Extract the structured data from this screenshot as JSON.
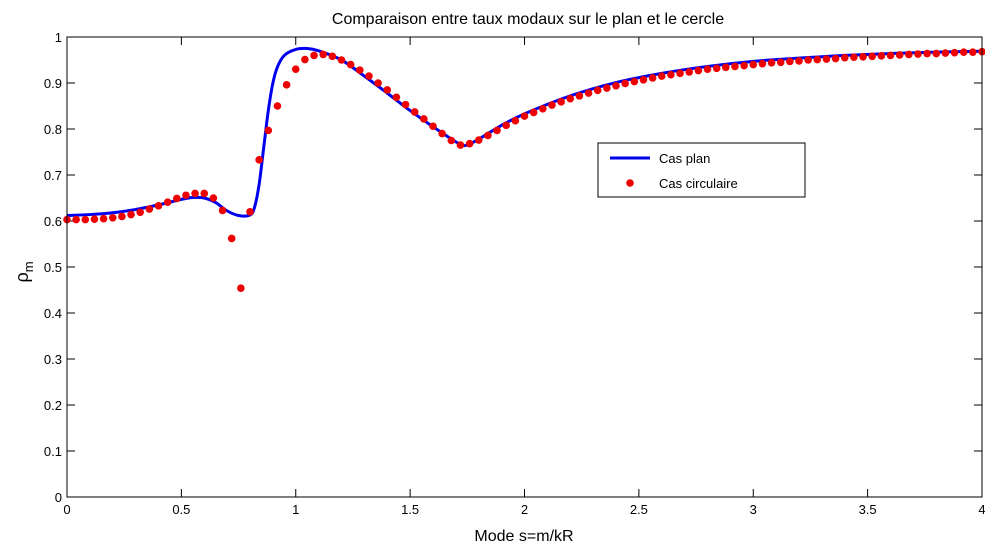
{
  "chart_data": {
    "type": "line",
    "title": "Comparaison entre taux modaux sur le plan et le cercle",
    "xlabel": "Mode s=m/kR",
    "ylabel": "ρ",
    "ylabel_sub": "m",
    "xlim": [
      0,
      4
    ],
    "ylim": [
      0,
      1
    ],
    "xticks": [
      0,
      0.5,
      1,
      1.5,
      2,
      2.5,
      3,
      3.5,
      4
    ],
    "xtick_labels": [
      "0",
      "0.5",
      "1",
      "1.5",
      "2",
      "2.5",
      "3",
      "3.5",
      "4"
    ],
    "yticks": [
      0,
      0.1,
      0.2,
      0.3,
      0.4,
      0.5,
      0.6,
      0.7,
      0.8,
      0.9,
      1
    ],
    "ytick_labels": [
      "0",
      "0.1",
      "0.2",
      "0.3",
      "0.4",
      "0.5",
      "0.6",
      "0.7",
      "0.8",
      "0.9",
      "1"
    ],
    "grid": false,
    "legend_position": "right-center",
    "series": [
      {
        "name": "Cas plan",
        "kind": "line",
        "color": "#0000ee",
        "x": [
          0,
          0.1,
          0.2,
          0.3,
          0.4,
          0.45,
          0.5,
          0.55,
          0.6,
          0.65,
          0.7,
          0.75,
          0.8,
          0.82,
          0.84,
          0.86,
          0.88,
          0.9,
          0.92,
          0.95,
          1.0,
          1.05,
          1.1,
          1.2,
          1.3,
          1.4,
          1.5,
          1.6,
          1.7,
          1.74,
          1.8,
          1.9,
          2.0,
          2.2,
          2.4,
          2.6,
          2.8,
          3.0,
          3.2,
          3.4,
          3.6,
          3.8,
          4.0
        ],
        "y": [
          0.612,
          0.614,
          0.618,
          0.625,
          0.635,
          0.641,
          0.647,
          0.651,
          0.65,
          0.64,
          0.622,
          0.612,
          0.613,
          0.63,
          0.68,
          0.76,
          0.84,
          0.9,
          0.935,
          0.96,
          0.973,
          0.975,
          0.97,
          0.95,
          0.915,
          0.878,
          0.84,
          0.805,
          0.772,
          0.764,
          0.778,
          0.808,
          0.833,
          0.872,
          0.901,
          0.921,
          0.936,
          0.947,
          0.954,
          0.96,
          0.964,
          0.967,
          0.969
        ]
      },
      {
        "name": "Cas circulaire",
        "kind": "scatter",
        "color": "#ee0000",
        "x": [
          0,
          0.04,
          0.08,
          0.12,
          0.16,
          0.2,
          0.24,
          0.28,
          0.32,
          0.36,
          0.4,
          0.44,
          0.48,
          0.52,
          0.56,
          0.6,
          0.64,
          0.68,
          0.72,
          0.76,
          0.8,
          0.84,
          0.88,
          0.92,
          0.96,
          1.0,
          1.04,
          1.08,
          1.12,
          1.16,
          1.2,
          1.24,
          1.28,
          1.32,
          1.36,
          1.4,
          1.44,
          1.48,
          1.52,
          1.56,
          1.6,
          1.64,
          1.68,
          1.72,
          1.76,
          1.8,
          1.84,
          1.88,
          1.92,
          1.96,
          2.0,
          2.04,
          2.08,
          2.12,
          2.16,
          2.2,
          2.24,
          2.28,
          2.32,
          2.36,
          2.4,
          2.44,
          2.48,
          2.52,
          2.56,
          2.6,
          2.64,
          2.68,
          2.72,
          2.76,
          2.8,
          2.84,
          2.88,
          2.92,
          2.96,
          3.0,
          3.04,
          3.08,
          3.12,
          3.16,
          3.2,
          3.24,
          3.28,
          3.32,
          3.36,
          3.4,
          3.44,
          3.48,
          3.52,
          3.56,
          3.6,
          3.64,
          3.68,
          3.72,
          3.76,
          3.8,
          3.84,
          3.88,
          3.92,
          3.96,
          4.0
        ],
        "y": [
          0.603,
          0.603,
          0.603,
          0.604,
          0.605,
          0.607,
          0.61,
          0.614,
          0.619,
          0.626,
          0.633,
          0.641,
          0.649,
          0.656,
          0.66,
          0.66,
          0.65,
          0.623,
          0.562,
          0.454,
          0.62,
          0.733,
          0.797,
          0.85,
          0.896,
          0.93,
          0.951,
          0.96,
          0.962,
          0.958,
          0.95,
          0.94,
          0.928,
          0.915,
          0.9,
          0.885,
          0.869,
          0.853,
          0.837,
          0.822,
          0.806,
          0.79,
          0.775,
          0.765,
          0.768,
          0.776,
          0.786,
          0.797,
          0.808,
          0.818,
          0.828,
          0.836,
          0.844,
          0.852,
          0.859,
          0.866,
          0.872,
          0.878,
          0.884,
          0.889,
          0.894,
          0.899,
          0.903,
          0.907,
          0.911,
          0.915,
          0.918,
          0.921,
          0.924,
          0.927,
          0.93,
          0.932,
          0.934,
          0.936,
          0.938,
          0.94,
          0.942,
          0.944,
          0.945,
          0.947,
          0.948,
          0.95,
          0.951,
          0.952,
          0.953,
          0.955,
          0.956,
          0.957,
          0.958,
          0.959,
          0.96,
          0.961,
          0.962,
          0.963,
          0.964,
          0.964,
          0.965,
          0.966,
          0.967,
          0.967,
          0.968
        ]
      }
    ]
  }
}
